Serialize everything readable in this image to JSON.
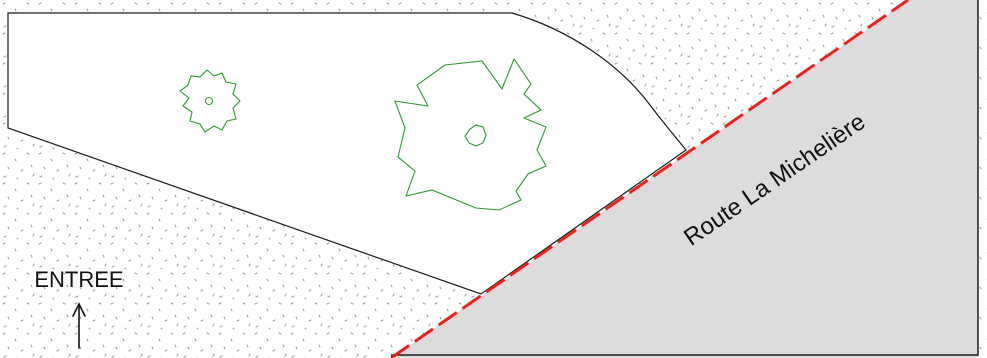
{
  "plan": {
    "road_label": "Route La Michelière",
    "entrance_label": "ENTREE",
    "colors": {
      "road_fill": "#dcdcdc",
      "boundary_line": "#e8231c",
      "vegetation": "#2e9a2e",
      "outline": "#1a1a1a",
      "stipple": "#9a9a9a"
    },
    "icons": {
      "small_tree": "small-tree-icon",
      "large_tree": "large-tree-icon",
      "entrance_arrow": "up-arrow-icon"
    }
  }
}
